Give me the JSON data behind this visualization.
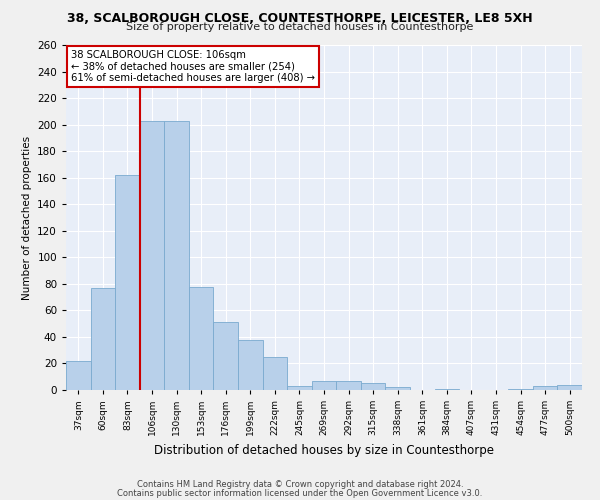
{
  "title": "38, SCALBOROUGH CLOSE, COUNTESTHORPE, LEICESTER, LE8 5XH",
  "subtitle": "Size of property relative to detached houses in Countesthorpe",
  "xlabel": "Distribution of detached houses by size in Countesthorpe",
  "ylabel": "Number of detached properties",
  "bar_color": "#b8d0ea",
  "bar_edge_color": "#7aaacf",
  "background_color": "#e8eef8",
  "grid_color": "#ffffff",
  "categories": [
    "37sqm",
    "60sqm",
    "83sqm",
    "106sqm",
    "130sqm",
    "153sqm",
    "176sqm",
    "199sqm",
    "222sqm",
    "245sqm",
    "269sqm",
    "292sqm",
    "315sqm",
    "338sqm",
    "361sqm",
    "384sqm",
    "407sqm",
    "431sqm",
    "454sqm",
    "477sqm",
    "500sqm"
  ],
  "values": [
    22,
    77,
    162,
    203,
    203,
    78,
    51,
    38,
    25,
    3,
    7,
    7,
    5,
    2,
    0,
    1,
    0,
    0,
    1,
    3,
    4
  ],
  "ylim": [
    0,
    260
  ],
  "yticks": [
    0,
    20,
    40,
    60,
    80,
    100,
    120,
    140,
    160,
    180,
    200,
    220,
    240,
    260
  ],
  "vline_index": 3,
  "annotation_text": "38 SCALBOROUGH CLOSE: 106sqm\n← 38% of detached houses are smaller (254)\n61% of semi-detached houses are larger (408) →",
  "annotation_box_color": "#ffffff",
  "annotation_box_edge_color": "#cc0000",
  "vline_color": "#cc0000",
  "footer_line1": "Contains HM Land Registry data © Crown copyright and database right 2024.",
  "footer_line2": "Contains public sector information licensed under the Open Government Licence v3.0.",
  "fig_bg_color": "#f0f0f0"
}
